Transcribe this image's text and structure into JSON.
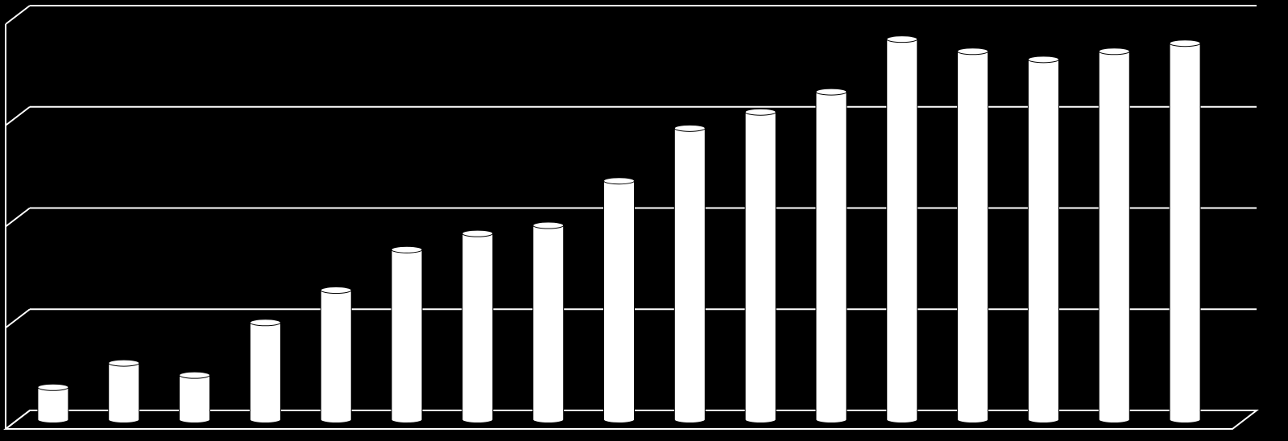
{
  "chart_data": {
    "type": "bar",
    "categories": [
      null,
      null,
      null,
      null,
      null,
      null,
      null,
      null,
      null,
      null,
      null,
      null,
      null,
      null,
      null,
      null,
      null
    ],
    "values": [
      8,
      14,
      11,
      24,
      32,
      42,
      46,
      48,
      59,
      72,
      76,
      81,
      94,
      91,
      89,
      91,
      93
    ],
    "color": "#ffffff",
    "ylim": [
      0,
      100
    ],
    "yticks": [
      0,
      25,
      50,
      75,
      100
    ],
    "grid": true
  }
}
